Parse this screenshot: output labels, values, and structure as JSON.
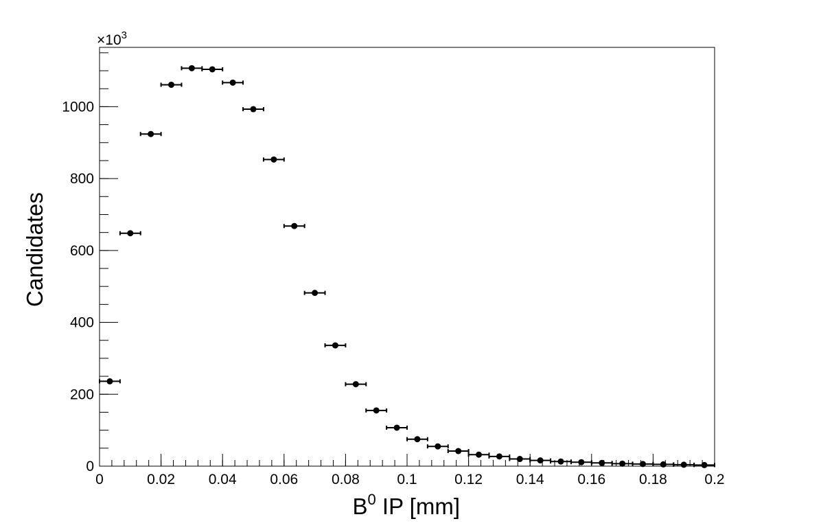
{
  "chart_data": {
    "type": "scatter",
    "style": "histogram-points-with-x-error-bars",
    "xlabel": "B",
    "xlabel_superscript": "0",
    "xlabel_suffix": " IP [mm]",
    "ylabel": "Candidates",
    "y_multiplier_prefix": "×10",
    "y_multiplier_exponent": "3",
    "xlim": [
      0,
      0.2
    ],
    "ylim": [
      0,
      1165
    ],
    "x_ticks": [
      0,
      0.02,
      0.04,
      0.06,
      0.08,
      0.1,
      0.12,
      0.14,
      0.16,
      0.18,
      0.2
    ],
    "x_tick_labels": [
      "0",
      "0.02",
      "0.04",
      "0.06",
      "0.08",
      "0.1",
      "0.12",
      "0.14",
      "0.16",
      "0.18",
      "0.2"
    ],
    "y_ticks": [
      0,
      200,
      400,
      600,
      800,
      1000
    ],
    "y_tick_labels": [
      "0",
      "200",
      "400",
      "600",
      "800",
      "1000"
    ],
    "bin_width": 0.006667,
    "grid": false,
    "legend": "none",
    "marker_color": "#000000",
    "points": [
      {
        "x": 0.003333,
        "y": 236
      },
      {
        "x": 0.01,
        "y": 648
      },
      {
        "x": 0.016667,
        "y": 924
      },
      {
        "x": 0.023333,
        "y": 1061
      },
      {
        "x": 0.03,
        "y": 1107
      },
      {
        "x": 0.036667,
        "y": 1104
      },
      {
        "x": 0.043333,
        "y": 1067
      },
      {
        "x": 0.05,
        "y": 993
      },
      {
        "x": 0.056667,
        "y": 853
      },
      {
        "x": 0.063333,
        "y": 668
      },
      {
        "x": 0.07,
        "y": 482
      },
      {
        "x": 0.076667,
        "y": 336
      },
      {
        "x": 0.083333,
        "y": 228
      },
      {
        "x": 0.09,
        "y": 155
      },
      {
        "x": 0.096667,
        "y": 107
      },
      {
        "x": 0.103333,
        "y": 75
      },
      {
        "x": 0.11,
        "y": 55
      },
      {
        "x": 0.116667,
        "y": 42
      },
      {
        "x": 0.123333,
        "y": 32
      },
      {
        "x": 0.13,
        "y": 27
      },
      {
        "x": 0.136667,
        "y": 20
      },
      {
        "x": 0.143333,
        "y": 16
      },
      {
        "x": 0.15,
        "y": 13
      },
      {
        "x": 0.156667,
        "y": 11
      },
      {
        "x": 0.163333,
        "y": 9
      },
      {
        "x": 0.17,
        "y": 7
      },
      {
        "x": 0.176667,
        "y": 6
      },
      {
        "x": 0.183333,
        "y": 5
      },
      {
        "x": 0.19,
        "y": 4
      },
      {
        "x": 0.196667,
        "y": 3
      }
    ]
  }
}
